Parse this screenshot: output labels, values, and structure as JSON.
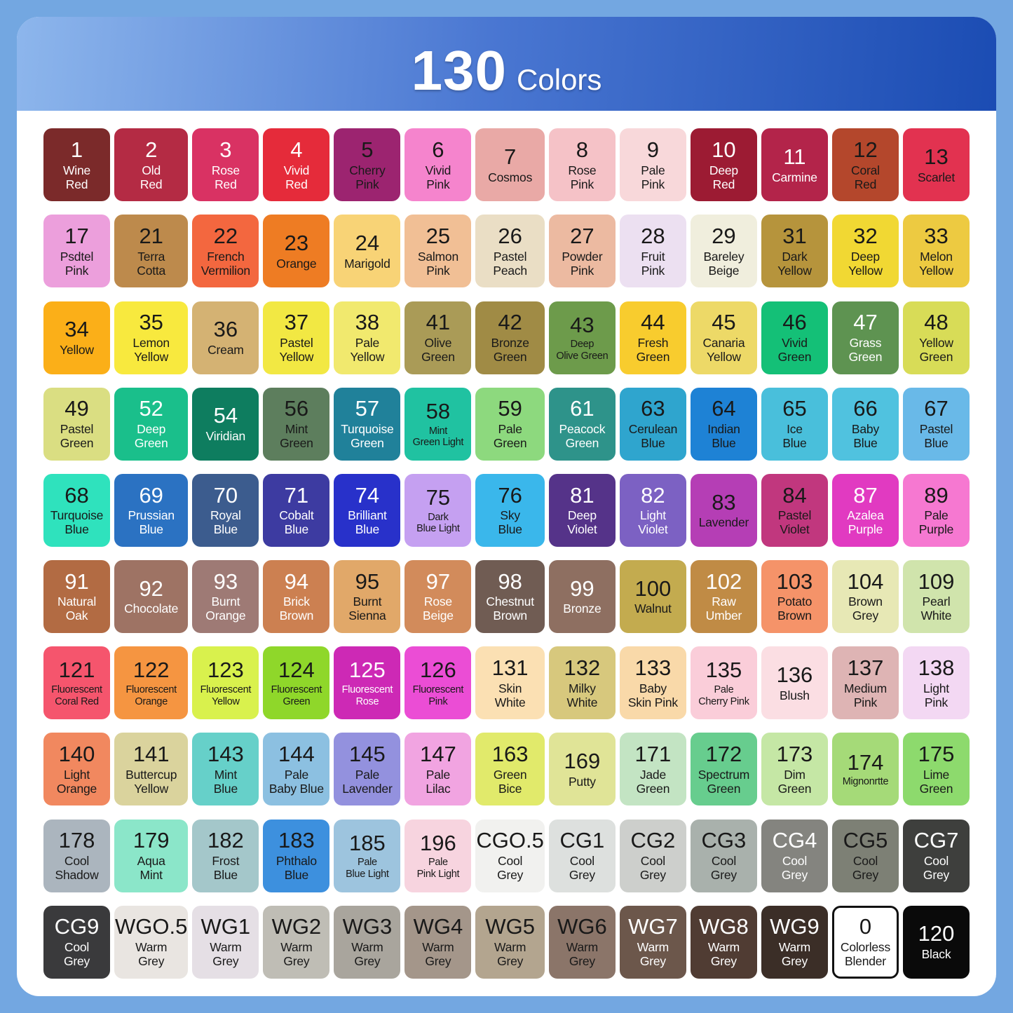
{
  "header": {
    "count": "130",
    "label": "Colors"
  },
  "colors": {
    "frame": "#73a7e1",
    "card": "#ffffff",
    "header_gradient_start": "#8db6ec",
    "header_gradient_end": "#1b4cb3",
    "dark_text": "#191919",
    "light_text": "#ffffff"
  },
  "chart_data": {
    "type": "table",
    "title": "130 Colors",
    "columns": 13,
    "rows": 10,
    "cells": [
      {
        "num": "1",
        "name": "Wine Red",
        "bg": "#7b2a2a",
        "fg": "light"
      },
      {
        "num": "2",
        "name": "Old Red",
        "bg": "#b42b44",
        "fg": "light"
      },
      {
        "num": "3",
        "name": "Rose Red",
        "bg": "#d93263",
        "fg": "light"
      },
      {
        "num": "4",
        "name": "Vivid Red",
        "bg": "#e52b3a",
        "fg": "light"
      },
      {
        "num": "5",
        "name": "Cherry Pink",
        "bg": "#9c2470",
        "fg": "dark"
      },
      {
        "num": "6",
        "name": "Vivid Pink",
        "bg": "#f584cd",
        "fg": "dark"
      },
      {
        "num": "7",
        "name": "Cosmos",
        "bg": "#e9a9a6",
        "fg": "dark"
      },
      {
        "num": "8",
        "name": "Rose Pink",
        "bg": "#f5c2c7",
        "fg": "dark"
      },
      {
        "num": "9",
        "name": "Pale Pink",
        "bg": "#f8d8da",
        "fg": "dark"
      },
      {
        "num": "10",
        "name": "Deep Red",
        "bg": "#9c1b33",
        "fg": "light"
      },
      {
        "num": "11",
        "name": "Carmine",
        "bg": "#b3244a",
        "fg": "light"
      },
      {
        "num": "12",
        "name": "Coral Red",
        "bg": "#b4472c",
        "fg": "dark"
      },
      {
        "num": "13",
        "name": "Scarlet",
        "bg": "#e23250",
        "fg": "dark"
      },
      {
        "num": "17",
        "name": "Psdtel Pink",
        "bg": "#ec9fdc",
        "fg": "dark"
      },
      {
        "num": "21",
        "name": "Terra Cotta",
        "bg": "#bd8a4c",
        "fg": "dark"
      },
      {
        "num": "22",
        "name": "French Vermilion",
        "bg": "#f3673f",
        "fg": "dark"
      },
      {
        "num": "23",
        "name": "Orange",
        "bg": "#ee7c23",
        "fg": "dark"
      },
      {
        "num": "24",
        "name": "Marigold",
        "bg": "#f8d376",
        "fg": "dark"
      },
      {
        "num": "25",
        "name": "Salmon Pink",
        "bg": "#f1bf95",
        "fg": "dark"
      },
      {
        "num": "26",
        "name": "Pastel Peach",
        "bg": "#eadec5",
        "fg": "dark"
      },
      {
        "num": "27",
        "name": "Powder Pink",
        "bg": "#ecbaa1",
        "fg": "dark"
      },
      {
        "num": "28",
        "name": "Fruit Pink",
        "bg": "#ece0f1",
        "fg": "dark"
      },
      {
        "num": "29",
        "name": "Bareley Beige",
        "bg": "#f0eedd",
        "fg": "dark"
      },
      {
        "num": "31",
        "name": "Dark Yellow",
        "bg": "#b6943c",
        "fg": "dark"
      },
      {
        "num": "32",
        "name": "Deep Yellow",
        "bg": "#f1d833",
        "fg": "dark"
      },
      {
        "num": "33",
        "name": "Melon Yellow",
        "bg": "#edca41",
        "fg": "dark"
      },
      {
        "num": "34",
        "name": "Yellow",
        "bg": "#fbaf18",
        "fg": "dark"
      },
      {
        "num": "35",
        "name": "Lemon Yellow",
        "bg": "#f8e93e",
        "fg": "dark"
      },
      {
        "num": "36",
        "name": "Cream",
        "bg": "#d4b273",
        "fg": "dark"
      },
      {
        "num": "37",
        "name": "Pastel Yellow",
        "bg": "#f2e843",
        "fg": "dark"
      },
      {
        "num": "38",
        "name": "Pale Yellow",
        "bg": "#f1e96e",
        "fg": "dark"
      },
      {
        "num": "41",
        "name": "Olive Green",
        "bg": "#aa9b57",
        "fg": "dark"
      },
      {
        "num": "42",
        "name": "Bronze Green",
        "bg": "#a08b45",
        "fg": "dark"
      },
      {
        "num": "43",
        "name": "Deep Olive Green",
        "bg": "#6d9b4b",
        "fg": "dark"
      },
      {
        "num": "44",
        "name": "Fresh Green",
        "bg": "#f8cc2e",
        "fg": "dark"
      },
      {
        "num": "45",
        "name": "Canaria Yellow",
        "bg": "#edd967",
        "fg": "dark"
      },
      {
        "num": "46",
        "name": "Vivid Green",
        "bg": "#14c077",
        "fg": "dark"
      },
      {
        "num": "47",
        "name": "Grass Green",
        "bg": "#5e9351",
        "fg": "light"
      },
      {
        "num": "48",
        "name": "Yellow Green",
        "bg": "#d8dc57",
        "fg": "dark"
      },
      {
        "num": "49",
        "name": "Pastel Green",
        "bg": "#dade82",
        "fg": "dark"
      },
      {
        "num": "52",
        "name": "Deep Green",
        "bg": "#1abf8b",
        "fg": "light"
      },
      {
        "num": "54",
        "name": "Viridian",
        "bg": "#0e7d5f",
        "fg": "light"
      },
      {
        "num": "56",
        "name": "Mint Green",
        "bg": "#5d7e5d",
        "fg": "dark"
      },
      {
        "num": "57",
        "name": "Turquoise Green",
        "bg": "#20819a",
        "fg": "light"
      },
      {
        "num": "58",
        "name": "Mint Green Light",
        "bg": "#20c2a1",
        "fg": "dark"
      },
      {
        "num": "59",
        "name": "Pale Green",
        "bg": "#8dd97e",
        "fg": "dark"
      },
      {
        "num": "61",
        "name": "Peacock Green",
        "bg": "#2e938a",
        "fg": "light"
      },
      {
        "num": "63",
        "name": "Cerulean Blue",
        "bg": "#2fa5ce",
        "fg": "dark"
      },
      {
        "num": "64",
        "name": "Indian Blue",
        "bg": "#1e82d5",
        "fg": "dark"
      },
      {
        "num": "65",
        "name": "Ice Blue",
        "bg": "#49bfdb",
        "fg": "dark"
      },
      {
        "num": "66",
        "name": "Baby Blue",
        "bg": "#50c2df",
        "fg": "dark"
      },
      {
        "num": "67",
        "name": "Pastel Blue",
        "bg": "#69b9e8",
        "fg": "dark"
      },
      {
        "num": "68",
        "name": "Turquoise Blue",
        "bg": "#2fe2bd",
        "fg": "dark"
      },
      {
        "num": "69",
        "name": "Prussian Blue",
        "bg": "#2b72c2",
        "fg": "light"
      },
      {
        "num": "70",
        "name": "Royal Blue",
        "bg": "#3c5c8e",
        "fg": "light"
      },
      {
        "num": "71",
        "name": "Cobalt Blue",
        "bg": "#3d3ba1",
        "fg": "light"
      },
      {
        "num": "74",
        "name": "Brilliant Blue",
        "bg": "#2831ca",
        "fg": "light"
      },
      {
        "num": "75",
        "name": "Dark Blue Light",
        "bg": "#c5a0f1",
        "fg": "dark"
      },
      {
        "num": "76",
        "name": "Sky Blue",
        "bg": "#3ab7eb",
        "fg": "dark"
      },
      {
        "num": "81",
        "name": "Deep Violet",
        "bg": "#553389",
        "fg": "light"
      },
      {
        "num": "82",
        "name": "Light Violet",
        "bg": "#7c61c3",
        "fg": "light"
      },
      {
        "num": "83",
        "name": "Lavender",
        "bg": "#b53eb5",
        "fg": "dark"
      },
      {
        "num": "84",
        "name": "Pastel Violet",
        "bg": "#c1377e",
        "fg": "dark"
      },
      {
        "num": "87",
        "name": "Azalea Purple",
        "bg": "#e13ac1",
        "fg": "light"
      },
      {
        "num": "89",
        "name": "Pale Purple",
        "bg": "#f678d1",
        "fg": "dark"
      },
      {
        "num": "91",
        "name": "Natural Oak",
        "bg": "#b26b43",
        "fg": "light"
      },
      {
        "num": "92",
        "name": "Chocolate",
        "bg": "#9e7364",
        "fg": "light"
      },
      {
        "num": "93",
        "name": "Burnt Orange",
        "bg": "#9e7a75",
        "fg": "light"
      },
      {
        "num": "94",
        "name": "Brick Brown",
        "bg": "#cc8051",
        "fg": "light"
      },
      {
        "num": "95",
        "name": "Burnt Sienna",
        "bg": "#e1a869",
        "fg": "dark"
      },
      {
        "num": "97",
        "name": "Rose Beige",
        "bg": "#d28b5b",
        "fg": "light"
      },
      {
        "num": "98",
        "name": "Chestnut Brown",
        "bg": "#705c53",
        "fg": "light"
      },
      {
        "num": "99",
        "name": "Bronze",
        "bg": "#8e6f61",
        "fg": "light"
      },
      {
        "num": "100",
        "name": "Walnut",
        "bg": "#c3ab4f",
        "fg": "dark"
      },
      {
        "num": "102",
        "name": "Raw Umber",
        "bg": "#c08b45",
        "fg": "light"
      },
      {
        "num": "103",
        "name": "Potato Brown",
        "bg": "#f59369",
        "fg": "dark"
      },
      {
        "num": "104",
        "name": "Brown Grey",
        "bg": "#e7e8b5",
        "fg": "dark"
      },
      {
        "num": "109",
        "name": "Pearl White",
        "bg": "#d0e4ac",
        "fg": "dark"
      },
      {
        "num": "121",
        "name": "Fluorescent Coral Red",
        "bg": "#f5556d",
        "fg": "dark"
      },
      {
        "num": "122",
        "name": "Fluorescent Orange",
        "bg": "#f59541",
        "fg": "dark"
      },
      {
        "num": "123",
        "name": "Fluorescent Yellow",
        "bg": "#d9f14d",
        "fg": "dark"
      },
      {
        "num": "124",
        "name": "Fluorescent Green",
        "bg": "#8fd72a",
        "fg": "dark"
      },
      {
        "num": "125",
        "name": "Fluorescent Rose",
        "bg": "#cd29b5",
        "fg": "light"
      },
      {
        "num": "126",
        "name": "Fluorescent Pink",
        "bg": "#eb4dd5",
        "fg": "dark"
      },
      {
        "num": "131",
        "name": "Skin White",
        "bg": "#fbe0b3",
        "fg": "dark"
      },
      {
        "num": "132",
        "name": "Milky White",
        "bg": "#d7c87d",
        "fg": "dark"
      },
      {
        "num": "133",
        "name": "Baby Skin Pink",
        "bg": "#f9d9a9",
        "fg": "dark"
      },
      {
        "num": "135",
        "name": "Pale Cherry Pink",
        "bg": "#facdd9",
        "fg": "dark"
      },
      {
        "num": "136",
        "name": "Blush",
        "bg": "#fbdee3",
        "fg": "dark"
      },
      {
        "num": "137",
        "name": "Medium Pink",
        "bg": "#deb4b4",
        "fg": "dark"
      },
      {
        "num": "138",
        "name": "Light Pink",
        "bg": "#f3d8f3",
        "fg": "dark"
      },
      {
        "num": "140",
        "name": "Light Orange",
        "bg": "#f1885f",
        "fg": "dark"
      },
      {
        "num": "141",
        "name": "Buttercup Yellow",
        "bg": "#dad39d",
        "fg": "dark"
      },
      {
        "num": "143",
        "name": "Mint Blue",
        "bg": "#66d0c9",
        "fg": "dark"
      },
      {
        "num": "144",
        "name": "Pale Baby Blue",
        "bg": "#8cc0e1",
        "fg": "dark"
      },
      {
        "num": "145",
        "name": "Pale Lavender",
        "bg": "#9391de",
        "fg": "dark"
      },
      {
        "num": "147",
        "name": "Pale Lilac",
        "bg": "#f1a4e1",
        "fg": "dark"
      },
      {
        "num": "163",
        "name": "Green Bice",
        "bg": "#e1ea6b",
        "fg": "dark"
      },
      {
        "num": "169",
        "name": "Putty",
        "bg": "#e0e497",
        "fg": "dark"
      },
      {
        "num": "171",
        "name": "Jade Green",
        "bg": "#c3e4c3",
        "fg": "dark"
      },
      {
        "num": "172",
        "name": "Spectrum Green",
        "bg": "#67cd8e",
        "fg": "dark"
      },
      {
        "num": "173",
        "name": "Dim Green",
        "bg": "#c5e7a5",
        "fg": "dark"
      },
      {
        "num": "174",
        "name": "Mignonrtte",
        "bg": "#a5da78",
        "fg": "dark"
      },
      {
        "num": "175",
        "name": "Lime Green",
        "bg": "#8dda6d",
        "fg": "dark"
      },
      {
        "num": "178",
        "name": "Cool Shadow",
        "bg": "#abb5be",
        "fg": "dark"
      },
      {
        "num": "179",
        "name": "Aqua Mint",
        "bg": "#8be6c9",
        "fg": "dark"
      },
      {
        "num": "182",
        "name": "Frost Blue",
        "bg": "#a4c7ca",
        "fg": "dark"
      },
      {
        "num": "183",
        "name": "Phthalo Blue",
        "bg": "#3d90de",
        "fg": "dark"
      },
      {
        "num": "185",
        "name": "Pale Blue Light",
        "bg": "#9dc4de",
        "fg": "dark"
      },
      {
        "num": "196",
        "name": "Pale Pink Light",
        "bg": "#f7d4df",
        "fg": "dark"
      },
      {
        "num": "CGO.5",
        "name": "Cool Grey",
        "bg": "#f1f1ef",
        "fg": "dark"
      },
      {
        "num": "CG1",
        "name": "Cool Grey",
        "bg": "#dde0de",
        "fg": "dark"
      },
      {
        "num": "CG2",
        "name": "Cool Grey",
        "bg": "#cdcfcc",
        "fg": "dark"
      },
      {
        "num": "CG3",
        "name": "Cool Grey",
        "bg": "#a9b1ac",
        "fg": "dark"
      },
      {
        "num": "CG4",
        "name": "Cool Grey",
        "bg": "#84847f",
        "fg": "light"
      },
      {
        "num": "CG5",
        "name": "Cool Grey",
        "bg": "#7d8075",
        "fg": "dark"
      },
      {
        "num": "CG7",
        "name": "Cool Grey",
        "bg": "#3e3f3d",
        "fg": "light"
      },
      {
        "num": "CG9",
        "name": "Cool Grey",
        "bg": "#3a3a3c",
        "fg": "light"
      },
      {
        "num": "WGO.5",
        "name": "Warm Grey",
        "bg": "#e9e5e1",
        "fg": "dark"
      },
      {
        "num": "WG1",
        "name": "Warm Grey",
        "bg": "#e5dfe5",
        "fg": "dark"
      },
      {
        "num": "WG2",
        "name": "Warm Grey",
        "bg": "#bfbdb5",
        "fg": "dark"
      },
      {
        "num": "WG3",
        "name": "Warm Grey",
        "bg": "#a9a59d",
        "fg": "dark"
      },
      {
        "num": "WG4",
        "name": "Warm Grey",
        "bg": "#a4968a",
        "fg": "dark"
      },
      {
        "num": "WG5",
        "name": "Warm Grey",
        "bg": "#b3a58f",
        "fg": "dark"
      },
      {
        "num": "WG6",
        "name": "Warm Grey",
        "bg": "#8b7569",
        "fg": "dark"
      },
      {
        "num": "WG7",
        "name": "Warm Grey",
        "bg": "#6c574b",
        "fg": "light"
      },
      {
        "num": "WG8",
        "name": "Warm Grey",
        "bg": "#503c33",
        "fg": "light"
      },
      {
        "num": "WG9",
        "name": "Warm Grey",
        "bg": "#3b2e27",
        "fg": "light"
      },
      {
        "num": "0",
        "name": "Colorless Blender",
        "bg": "#ffffff",
        "fg": "dark",
        "outline": true
      },
      {
        "num": "120",
        "name": "Black",
        "bg": "#0a0a0a",
        "fg": "light"
      }
    ]
  }
}
